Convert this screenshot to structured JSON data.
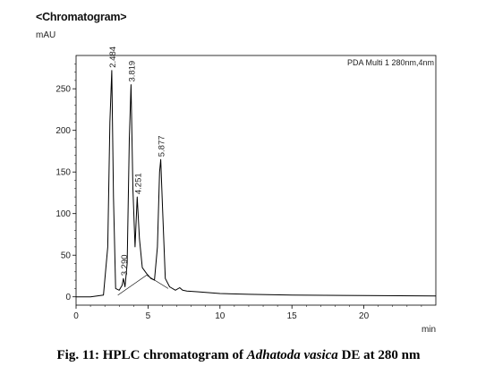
{
  "chart_data": {
    "type": "line",
    "title": "<Chromatogram>",
    "ylabel": "mAU",
    "xlabel": "min",
    "detector_label": "PDA Multi 1 280nm,4nm",
    "xlim": [
      0,
      25
    ],
    "ylim": [
      -10,
      290
    ],
    "x_ticks": [
      0,
      5,
      10,
      15,
      20
    ],
    "y_ticks": [
      0,
      50,
      100,
      150,
      200,
      250
    ],
    "grid": false,
    "peaks": [
      {
        "label": "2.484",
        "rt": 2.484,
        "height": 272
      },
      {
        "label": "3.290",
        "rt": 3.29,
        "height": 22
      },
      {
        "label": "3.819",
        "rt": 3.819,
        "height": 255
      },
      {
        "label": "4.251",
        "rt": 4.251,
        "height": 120
      },
      {
        "label": "5.877",
        "rt": 5.877,
        "height": 165
      }
    ],
    "series": [
      {
        "x": [
          0,
          1,
          1.9,
          2.2,
          2.35,
          2.48,
          2.6,
          2.75,
          3.0,
          3.2,
          3.29,
          3.4,
          3.55,
          3.7,
          3.82,
          3.95,
          4.1,
          4.25,
          4.4,
          4.6,
          4.9,
          5.2,
          5.45,
          5.65,
          5.8,
          5.88,
          6.0,
          6.2,
          6.5,
          6.9,
          7.2,
          7.4,
          7.7,
          8.5,
          10,
          12,
          15,
          20,
          25
        ],
        "y": [
          0,
          0,
          2,
          60,
          210,
          272,
          120,
          10,
          8,
          14,
          22,
          12,
          40,
          190,
          255,
          130,
          60,
          120,
          70,
          35,
          28,
          22,
          20,
          60,
          150,
          165,
          110,
          22,
          12,
          8,
          11,
          8,
          7,
          6,
          4,
          3,
          2,
          1.5,
          1
        ]
      }
    ]
  },
  "caption": {
    "prefix": "Fig. 11: HPLC chromatogram of ",
    "italic": "Adhatoda vasica",
    "suffix": " DE at 280 nm"
  },
  "colors": {
    "trace": "#000000",
    "axis": "#000000"
  }
}
